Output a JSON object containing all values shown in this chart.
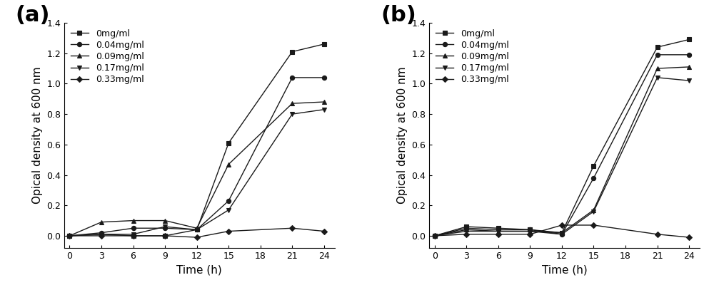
{
  "time": [
    0,
    3,
    6,
    9,
    12,
    15,
    18,
    21,
    24
  ],
  "panel_a": {
    "label": "(a)",
    "series": [
      {
        "label": "0mg/ml",
        "marker": "s",
        "values": [
          0.0,
          0.01,
          0.0,
          0.0,
          0.04,
          0.61,
          null,
          1.21,
          1.26
        ]
      },
      {
        "label": "0.04mg/ml",
        "marker": "o",
        "values": [
          0.0,
          0.02,
          0.05,
          0.05,
          0.04,
          0.23,
          null,
          1.04,
          1.04
        ]
      },
      {
        "label": "0.09mg/ml",
        "marker": "^",
        "values": [
          0.0,
          0.09,
          0.1,
          0.1,
          0.05,
          0.47,
          null,
          0.87,
          0.88
        ]
      },
      {
        "label": "0.17mg/ml",
        "marker": "v",
        "values": [
          0.0,
          0.01,
          0.01,
          0.06,
          0.04,
          0.17,
          null,
          0.8,
          0.83
        ]
      },
      {
        "label": "0.33mg/ml",
        "marker": "D",
        "values": [
          0.0,
          0.0,
          0.0,
          0.0,
          -0.01,
          0.03,
          null,
          0.05,
          0.03
        ]
      }
    ],
    "ylabel": "Opical density at 600 nm",
    "xlabel": "Time (h)",
    "ylim": [
      -0.08,
      1.4
    ],
    "yticks": [
      0.0,
      0.2,
      0.4,
      0.6,
      0.8,
      1.0,
      1.2,
      1.4
    ],
    "xticks": [
      0,
      3,
      6,
      9,
      12,
      15,
      18,
      21,
      24
    ]
  },
  "panel_b": {
    "label": "(b)",
    "series": [
      {
        "label": "0mg/ml",
        "marker": "s",
        "values": [
          0.0,
          0.06,
          0.05,
          0.04,
          0.02,
          0.46,
          null,
          1.24,
          1.29
        ]
      },
      {
        "label": "0.04mg/ml",
        "marker": "o",
        "values": [
          0.0,
          0.05,
          0.04,
          0.04,
          0.01,
          0.38,
          null,
          1.19,
          1.19
        ]
      },
      {
        "label": "0.09mg/ml",
        "marker": "^",
        "values": [
          0.0,
          0.04,
          0.03,
          0.03,
          0.02,
          0.17,
          null,
          1.1,
          1.11
        ]
      },
      {
        "label": "0.17mg/ml",
        "marker": "v",
        "values": [
          0.0,
          0.03,
          0.03,
          0.03,
          0.01,
          0.16,
          null,
          1.04,
          1.02
        ]
      },
      {
        "label": "0.33mg/ml",
        "marker": "D",
        "values": [
          0.0,
          0.01,
          0.01,
          0.01,
          0.07,
          0.07,
          null,
          0.01,
          -0.01
        ]
      }
    ],
    "ylabel": "Opical density at 600 nm",
    "xlabel": "Time (h)",
    "ylim": [
      -0.08,
      1.4
    ],
    "yticks": [
      0.0,
      0.2,
      0.4,
      0.6,
      0.8,
      1.0,
      1.2,
      1.4
    ],
    "xticks": [
      0,
      3,
      6,
      9,
      12,
      15,
      18,
      21,
      24
    ]
  },
  "line_color": "#1a1a1a",
  "background_color": "#ffffff",
  "axis_label_fontsize": 11,
  "tick_fontsize": 9,
  "legend_fontsize": 9,
  "panel_label_fontsize": 22
}
